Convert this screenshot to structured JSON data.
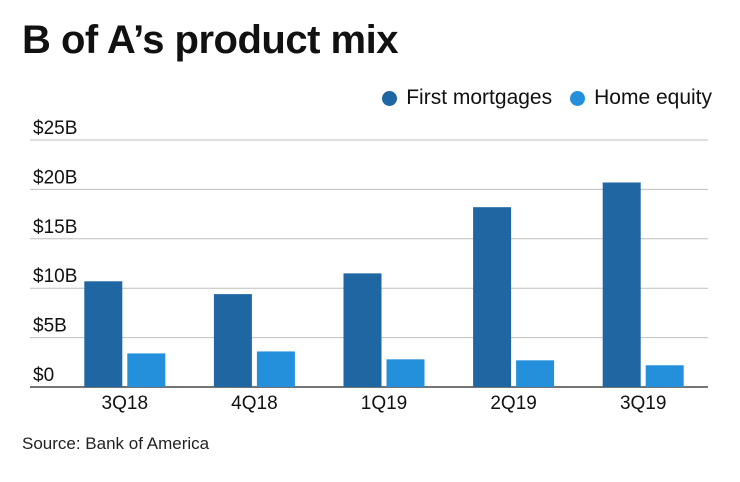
{
  "title": "B of A’s product mix",
  "source": "Source: Bank of America",
  "colors": {
    "first_mortgages": "#1f67a3",
    "home_equity": "#2490dc",
    "grid": "#bfbfbf",
    "axis": "#222222"
  },
  "chart_data": {
    "type": "bar",
    "title": "B of A’s product mix",
    "xlabel": "",
    "ylabel": "",
    "categories": [
      "3Q18",
      "4Q18",
      "1Q19",
      "2Q19",
      "3Q19"
    ],
    "series": [
      {
        "name": "First mortgages",
        "values": [
          10.7,
          9.4,
          11.5,
          18.2,
          20.7
        ],
        "color": "#1f67a3"
      },
      {
        "name": "Home equity",
        "values": [
          3.4,
          3.6,
          2.8,
          2.7,
          2.2
        ],
        "color": "#2490dc"
      }
    ],
    "ylim": [
      0,
      25
    ],
    "yticks": [
      0,
      5,
      10,
      15,
      20,
      25
    ],
    "ytick_labels": [
      "$0",
      "$5B",
      "$10B",
      "$15B",
      "$20B",
      "$25B"
    ],
    "grid": true,
    "legend_position": "top-right"
  }
}
